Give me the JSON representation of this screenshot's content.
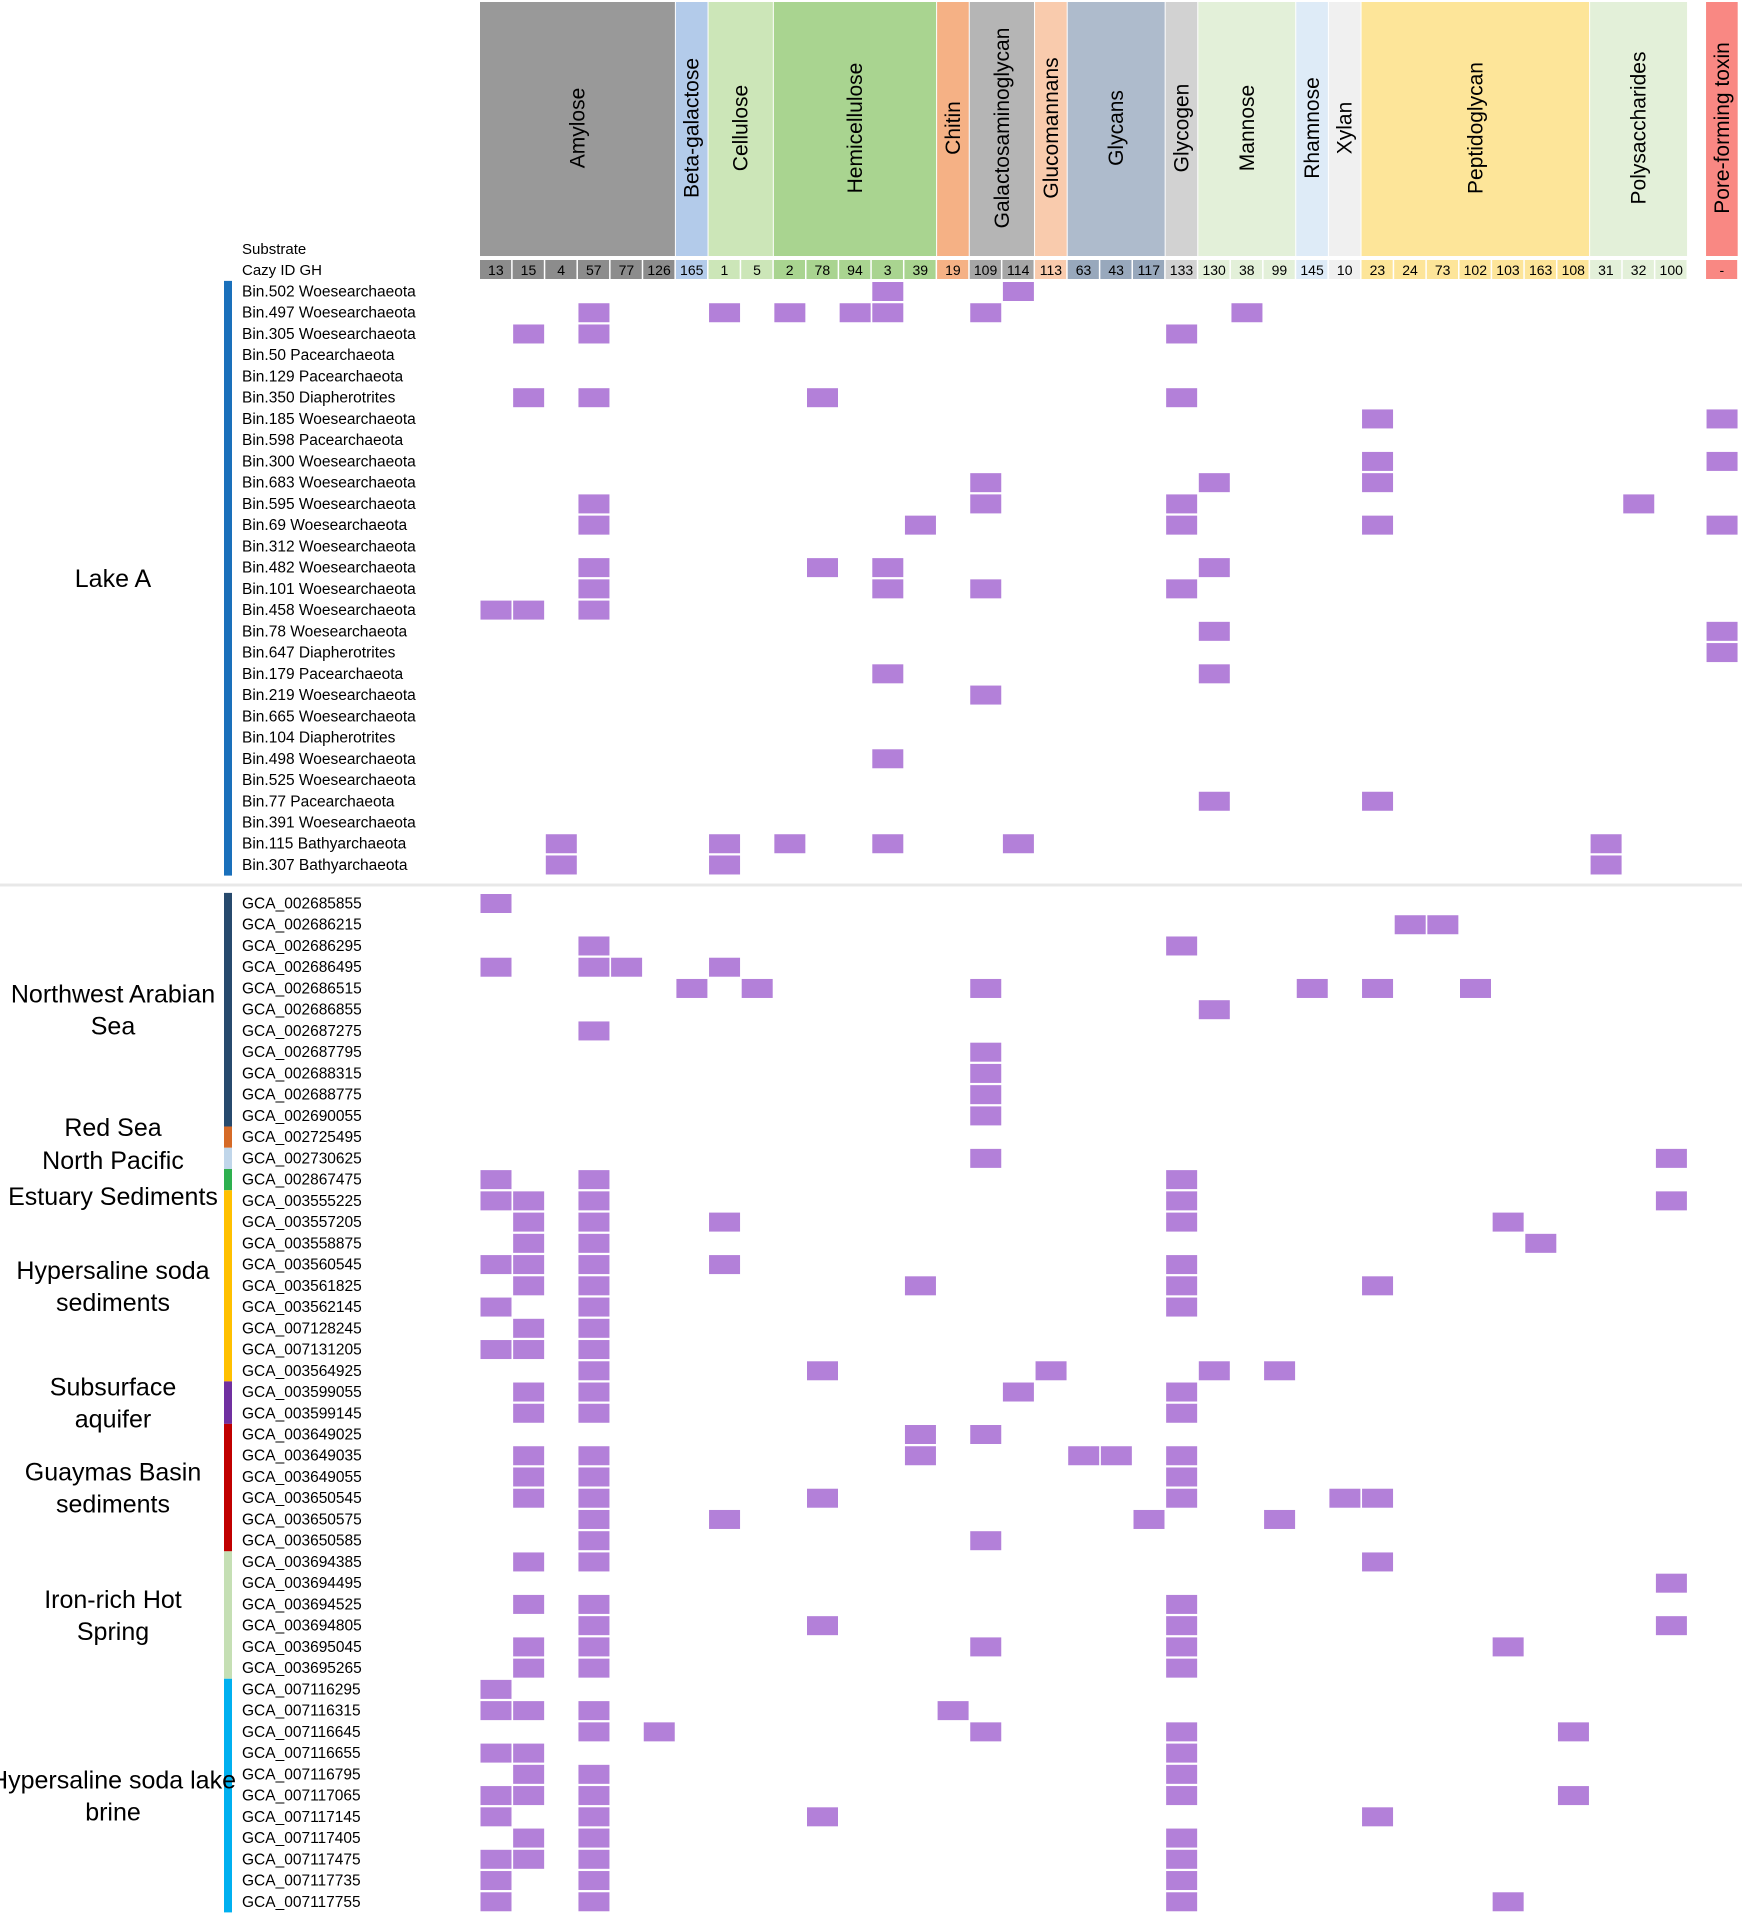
{
  "chart_data": {
    "type": "heatmap",
    "title": "",
    "substrate_header_label": "Substrate",
    "cazy_header_label": "Cazy ID GH",
    "mark_color": "#b380d9",
    "substrates": [
      {
        "name": "Amylose",
        "color": "#999999",
        "ids": [
          "13",
          "15",
          "4",
          "57",
          "77",
          "126"
        ]
      },
      {
        "name": "Beta-galactose",
        "color": "#b3cbea",
        "ids": [
          "165"
        ]
      },
      {
        "name": "Cellulose",
        "color": "#cce6b8",
        "ids": [
          "1",
          "5"
        ]
      },
      {
        "name": "Hemicellulose",
        "color": "#a9d490",
        "ids": [
          "2",
          "78",
          "94",
          "3",
          "39"
        ]
      },
      {
        "name": "Chitin",
        "color": "#f5b185",
        "ids": [
          "19"
        ]
      },
      {
        "name": "Galactosaminoglycan",
        "color": "#b5b5b5",
        "ids": [
          "109",
          "114"
        ]
      },
      {
        "name": "Glucomannans",
        "color": "#f9cbad",
        "ids": [
          "113"
        ]
      },
      {
        "name": "Glycans",
        "color": "#aebbcc",
        "ids": [
          "63",
          "43",
          "117"
        ]
      },
      {
        "name": "Glycogen",
        "color": "#d2d2d2",
        "ids": [
          "133"
        ]
      },
      {
        "name": "Mannose",
        "color": "#e3f0d9",
        "ids": [
          "130",
          "38",
          "99"
        ]
      },
      {
        "name": "Rhamnose",
        "color": "#deebf7",
        "ids": [
          "145"
        ]
      },
      {
        "name": "Xylan",
        "color": "#f0f0f0",
        "ids": [
          "10"
        ]
      },
      {
        "name": "Peptidoglycan",
        "color": "#fde599",
        "ids": [
          "23",
          "24",
          "73",
          "102",
          "103",
          "163",
          "108"
        ]
      },
      {
        "name": "Polysaccharides",
        "color": "#e3f0d9",
        "ids": [
          "31",
          "32",
          "100"
        ]
      },
      {
        "name": "Pore-forming toxin",
        "color": "#f98883",
        "ids": [
          "-"
        ]
      }
    ],
    "groups": [
      {
        "name": "Lake A",
        "color": "#1a70bb",
        "rows": [
          {
            "label": "Bin.502  Woesearchaeota",
            "hits": [
              "3",
              "114"
            ]
          },
          {
            "label": "Bin.497  Woesearchaeota",
            "hits": [
              "57",
              "1",
              "2",
              "94",
              "3",
              "109",
              "38"
            ]
          },
          {
            "label": "Bin.305  Woesearchaeota",
            "hits": [
              "15",
              "57",
              "133"
            ]
          },
          {
            "label": "Bin.50 Pacearchaeota",
            "hits": []
          },
          {
            "label": "Bin.129 Pacearchaeota",
            "hits": []
          },
          {
            "label": "Bin.350 Diapherotrites",
            "hits": [
              "15",
              "57",
              "78",
              "133"
            ]
          },
          {
            "label": "Bin.185  Woesearchaeota",
            "hits": [
              "23",
              "-"
            ]
          },
          {
            "label": "Bin.598 Pacearchaeota",
            "hits": []
          },
          {
            "label": "Bin.300  Woesearchaeota",
            "hits": [
              "23",
              "-"
            ]
          },
          {
            "label": "Bin.683  Woesearchaeota",
            "hits": [
              "109",
              "130",
              "23"
            ]
          },
          {
            "label": "Bin.595  Woesearchaeota",
            "hits": [
              "57",
              "109",
              "133",
              "32"
            ]
          },
          {
            "label": "Bin.69  Woesearchaeota",
            "hits": [
              "57",
              "39",
              "133",
              "23",
              "-"
            ]
          },
          {
            "label": "Bin.312  Woesearchaeota",
            "hits": []
          },
          {
            "label": "Bin.482  Woesearchaeota",
            "hits": [
              "57",
              "78",
              "3",
              "130"
            ]
          },
          {
            "label": "Bin.101  Woesearchaeota",
            "hits": [
              "57",
              "3",
              "109",
              "133"
            ]
          },
          {
            "label": "Bin.458  Woesearchaeota",
            "hits": [
              "13",
              "15",
              "57"
            ]
          },
          {
            "label": "Bin.78  Woesearchaeota",
            "hits": [
              "130",
              "-"
            ]
          },
          {
            "label": "Bin.647 Diapherotrites",
            "hits": [
              "-"
            ]
          },
          {
            "label": "Bin.179 Pacearchaeota",
            "hits": [
              "3",
              "130"
            ]
          },
          {
            "label": "Bin.219  Woesearchaeota",
            "hits": [
              "109"
            ]
          },
          {
            "label": "Bin.665  Woesearchaeota",
            "hits": []
          },
          {
            "label": "Bin.104 Diapherotrites",
            "hits": []
          },
          {
            "label": "Bin.498  Woesearchaeota",
            "hits": [
              "3"
            ]
          },
          {
            "label": "Bin.525  Woesearchaeota",
            "hits": []
          },
          {
            "label": "Bin.77 Pacearchaeota",
            "hits": [
              "130",
              "23"
            ]
          },
          {
            "label": "Bin.391  Woesearchaeota",
            "hits": []
          },
          {
            "label": "Bin.115 Bathyarchaeota",
            "hits": [
              "4",
              "1",
              "2",
              "3",
              "114",
              "31"
            ]
          },
          {
            "label": "Bin.307 Bathyarchaeota",
            "hits": [
              "4",
              "1",
              "31"
            ]
          }
        ]
      },
      {
        "name": "Northwest Arabian Sea",
        "color": "#274a6d",
        "rows": [
          {
            "label": "GCA_002685855",
            "hits": [
              "13"
            ]
          },
          {
            "label": "GCA_002686215",
            "hits": [
              "24",
              "73"
            ]
          },
          {
            "label": "GCA_002686295",
            "hits": [
              "57",
              "133"
            ]
          },
          {
            "label": "GCA_002686495",
            "hits": [
              "13",
              "57",
              "77",
              "1"
            ]
          },
          {
            "label": "GCA_002686515",
            "hits": [
              "165",
              "5",
              "109",
              "145",
              "23",
              "102"
            ]
          },
          {
            "label": "GCA_002686855",
            "hits": [
              "130"
            ]
          },
          {
            "label": "GCA_002687275",
            "hits": [
              "57"
            ]
          },
          {
            "label": "GCA_002687795",
            "hits": [
              "109"
            ]
          },
          {
            "label": "GCA_002688315",
            "hits": [
              "109"
            ]
          },
          {
            "label": "GCA_002688775",
            "hits": [
              "109"
            ]
          },
          {
            "label": "GCA_002690055",
            "hits": [
              "109"
            ]
          }
        ]
      },
      {
        "name": "Red Sea",
        "color": "#d56a27",
        "rows": [
          {
            "label": "GCA_002725495",
            "hits": []
          }
        ]
      },
      {
        "name": "North Pacific",
        "color": "#c0d6ea",
        "rows": [
          {
            "label": "GCA_002730625",
            "hits": [
              "109",
              "100"
            ]
          }
        ]
      },
      {
        "name": "Estuary Sediments",
        "color": "#2eb04f",
        "rows": [
          {
            "label": "GCA_002867475",
            "hits": [
              "13",
              "57",
              "133"
            ]
          }
        ]
      },
      {
        "name": "Hypersaline soda sediments",
        "color": "#ffc000",
        "rows": [
          {
            "label": "GCA_003555225",
            "hits": [
              "13",
              "15",
              "57",
              "133",
              "100"
            ]
          },
          {
            "label": "GCA_003557205",
            "hits": [
              "15",
              "57",
              "1",
              "133",
              "103"
            ]
          },
          {
            "label": "GCA_003558875",
            "hits": [
              "15",
              "57",
              "163"
            ]
          },
          {
            "label": "GCA_003560545",
            "hits": [
              "13",
              "15",
              "57",
              "1",
              "133"
            ]
          },
          {
            "label": "GCA_003561825",
            "hits": [
              "15",
              "57",
              "39",
              "133",
              "23"
            ]
          },
          {
            "label": "GCA_003562145",
            "hits": [
              "13",
              "57",
              "133"
            ]
          },
          {
            "label": "GCA_007128245",
            "hits": [
              "15",
              "57"
            ]
          },
          {
            "label": "GCA_007131205",
            "hits": [
              "13",
              "15",
              "57"
            ]
          },
          {
            "label": "GCA_003564925",
            "hits": [
              "57",
              "78",
              "113",
              "130",
              "99"
            ]
          }
        ]
      },
      {
        "name": "Subsurface aquifer",
        "color": "#7030a0",
        "rows": [
          {
            "label": "GCA_003599055",
            "hits": [
              "15",
              "57",
              "114",
              "133"
            ]
          },
          {
            "label": "GCA_003599145",
            "hits": [
              "15",
              "57",
              "133"
            ]
          }
        ]
      },
      {
        "name": "Guaymas Basin sediments",
        "color": "#c00000",
        "rows": [
          {
            "label": "GCA_003649025",
            "hits": [
              "39",
              "109"
            ]
          },
          {
            "label": "GCA_003649035",
            "hits": [
              "15",
              "57",
              "39",
              "63",
              "43",
              "133"
            ]
          },
          {
            "label": "GCA_003649055",
            "hits": [
              "15",
              "57",
              "133"
            ]
          },
          {
            "label": "GCA_003650545",
            "hits": [
              "15",
              "57",
              "78",
              "133",
              "10",
              "23"
            ]
          },
          {
            "label": "GCA_003650575",
            "hits": [
              "57",
              "1",
              "117",
              "99"
            ]
          },
          {
            "label": "GCA_003650585",
            "hits": [
              "57",
              "109"
            ]
          }
        ]
      },
      {
        "name": "Iron-rich Hot Spring",
        "color": "#c5dfb4",
        "rows": [
          {
            "label": "GCA_003694385",
            "hits": [
              "15",
              "57",
              "23"
            ]
          },
          {
            "label": "GCA_003694495",
            "hits": [
              "100"
            ]
          },
          {
            "label": "GCA_003694525",
            "hits": [
              "15",
              "57",
              "133"
            ]
          },
          {
            "label": "GCA_003694805",
            "hits": [
              "57",
              "78",
              "133",
              "100"
            ]
          },
          {
            "label": "GCA_003695045",
            "hits": [
              "15",
              "57",
              "109",
              "133",
              "103"
            ]
          },
          {
            "label": "GCA_003695265",
            "hits": [
              "15",
              "57",
              "133"
            ]
          }
        ]
      },
      {
        "name": "Hypersaline soda lake brine",
        "color": "#00b0f0",
        "rows": [
          {
            "label": "GCA_007116295",
            "hits": [
              "13"
            ]
          },
          {
            "label": "GCA_007116315",
            "hits": [
              "13",
              "15",
              "57",
              "19"
            ]
          },
          {
            "label": "GCA_007116645",
            "hits": [
              "57",
              "126",
              "109",
              "133",
              "108"
            ]
          },
          {
            "label": "GCA_007116655",
            "hits": [
              "13",
              "15",
              "133"
            ]
          },
          {
            "label": "GCA_007116795",
            "hits": [
              "15",
              "57",
              "133"
            ]
          },
          {
            "label": "GCA_007117065",
            "hits": [
              "13",
              "15",
              "57",
              "133",
              "108"
            ]
          },
          {
            "label": "GCA_007117145",
            "hits": [
              "13",
              "57",
              "78",
              "23"
            ]
          },
          {
            "label": "GCA_007117405",
            "hits": [
              "15",
              "57",
              "133"
            ]
          },
          {
            "label": "GCA_007117475",
            "hits": [
              "13",
              "15",
              "57",
              "133"
            ]
          },
          {
            "label": "GCA_007117735",
            "hits": [
              "13",
              "57",
              "133"
            ]
          },
          {
            "label": "GCA_007117755",
            "hits": [
              "13",
              "57",
              "133",
              "103"
            ]
          }
        ]
      }
    ]
  }
}
